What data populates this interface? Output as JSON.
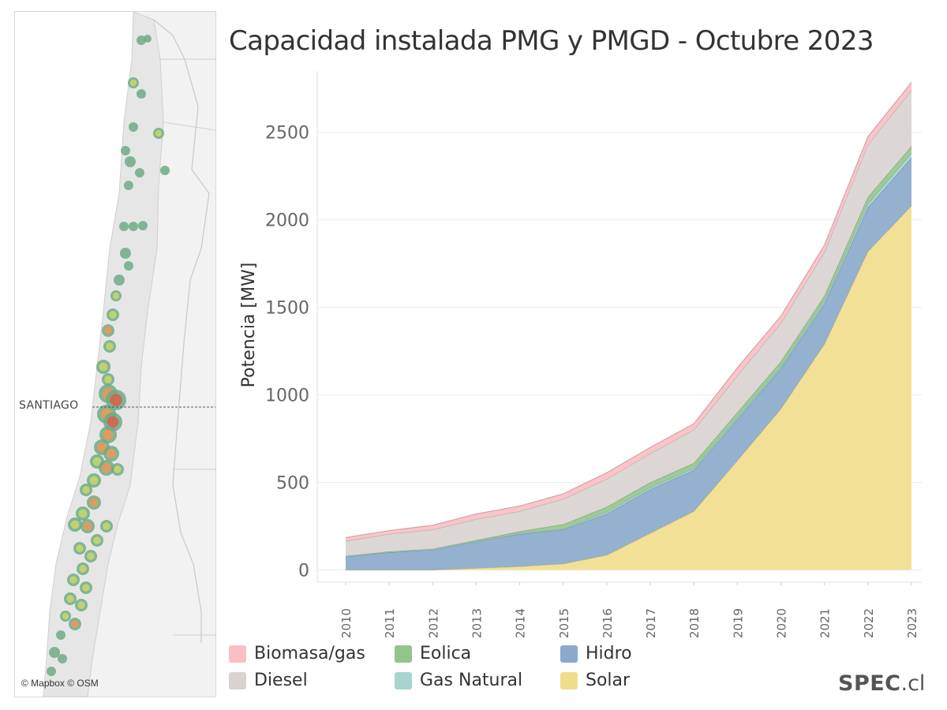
{
  "map": {
    "city_label": "SANTIAGO",
    "credit": "© Mapbox © OSM"
  },
  "brand": {
    "name": "SPEC",
    "suffix": ".cl"
  },
  "colors": {
    "Biomasa/gas": "#f9bfc4",
    "Diesel": "#d8d3d0",
    "Eolica": "#93c48c",
    "Gas Natural": "#a7d4cf",
    "Hidro": "#8aa9cb",
    "Solar": "#f2dd8c"
  },
  "chart_data": {
    "type": "area",
    "stacked": true,
    "title": "Capacidad instalada PMG y PMGD - Octubre 2023",
    "ylabel": "Potencia [MW]",
    "xlabel": "",
    "ylim": [
      -70,
      2850
    ],
    "y_ticks": [
      0,
      500,
      1000,
      1500,
      2000,
      2500
    ],
    "x": [
      "2010",
      "2011",
      "2012",
      "2013",
      "2014",
      "2015",
      "2016",
      "2017",
      "2018",
      "2019",
      "2020",
      "2021",
      "2022",
      "2023"
    ],
    "grid": true,
    "legend_position": "bottom",
    "series": [
      {
        "name": "Solar",
        "values": [
          0,
          0,
          0,
          10,
          20,
          35,
          85,
          210,
          335,
          625,
          920,
          1290,
          1820,
          2080
        ]
      },
      {
        "name": "Hidro",
        "values": [
          75,
          100,
          115,
          150,
          185,
          195,
          235,
          250,
          235,
          235,
          230,
          230,
          250,
          275
        ]
      },
      {
        "name": "Gas Natural",
        "values": [
          5,
          5,
          5,
          5,
          5,
          5,
          10,
          10,
          10,
          10,
          10,
          15,
          20,
          25
        ]
      },
      {
        "name": "Eolica",
        "values": [
          0,
          0,
          0,
          5,
          10,
          25,
          30,
          30,
          30,
          30,
          30,
          30,
          40,
          40
        ]
      },
      {
        "name": "Diesel",
        "values": [
          85,
          100,
          110,
          120,
          115,
          145,
          160,
          165,
          190,
          210,
          220,
          250,
          300,
          320
        ]
      },
      {
        "name": "Biomasa/gas",
        "values": [
          20,
          20,
          25,
          30,
          30,
          30,
          35,
          35,
          35,
          45,
          40,
          40,
          45,
          45
        ]
      }
    ]
  }
}
